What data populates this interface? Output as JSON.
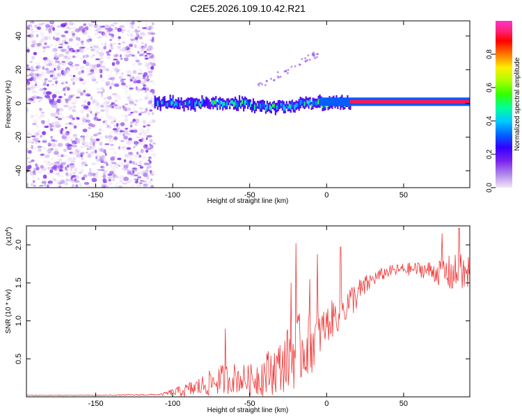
{
  "title": "C2E5.2026.109.10.42.R21",
  "colors": {
    "snr_line": "#ee3333",
    "axis": "#000000",
    "background": "#ffffff"
  },
  "chart_data": [
    {
      "type": "heatmap",
      "name": "spectrogram",
      "xlabel": "Height of straight line (km)",
      "ylabel": "Frequency (Hz)",
      "xlim": [
        -195,
        93
      ],
      "ylim": [
        -50,
        49
      ],
      "xticks": [
        -150,
        -100,
        -50,
        0,
        50
      ],
      "yticks": [
        -40,
        -20,
        0,
        20,
        40
      ],
      "colorbar": {
        "label": "Normalized spectral amplitude",
        "range": [
          0,
          1
        ],
        "ticks": [
          0.0,
          0.2,
          0.4,
          0.6,
          0.8
        ],
        "tick_labels": [
          "0.0",
          "0.2",
          "0.4",
          "0.6",
          "0.8"
        ],
        "colormap": [
          "#f2e6f7",
          "#b088ec",
          "#7b22ee",
          "#3300ff",
          "#0066ff",
          "#00ccff",
          "#00ff99",
          "#33ff00",
          "#aaff00",
          "#ffee00",
          "#ff7700",
          "#ff0000",
          "#ff2277",
          "#ff33cc"
        ]
      },
      "description_regions": [
        {
          "x_range": [
            -195,
            -112
          ],
          "freq_range": [
            -50,
            49
          ],
          "amplitude": [
            0.0,
            0.15
          ],
          "pattern": "broadband noise"
        },
        {
          "x_range": [
            -112,
            15
          ],
          "center_freq": 0,
          "half_width": [
            2,
            4
          ],
          "amplitude": [
            0.15,
            0.55
          ],
          "pattern": "fluctuating narrow band"
        },
        {
          "x_range": [
            -45,
            -5
          ],
          "freq": [
            10,
            30
          ],
          "amplitude": [
            0.1,
            0.2
          ],
          "pattern": "faint rising streak"
        },
        {
          "x_range": [
            15,
            93
          ],
          "center_freq": 1,
          "half_width": 1,
          "amplitude": [
            0.9,
            1.0
          ],
          "pattern": "strong steady line"
        }
      ]
    },
    {
      "type": "line",
      "name": "snr",
      "xlabel": "Height of straight line (km)",
      "ylabel": "SNR (10 * v/v)",
      "multiplier": "(x10",
      "multiplier_exp": "4",
      "xlim": [
        -195,
        93
      ],
      "ylim": [
        0,
        2.25
      ],
      "xticks": [
        -150,
        -100,
        -50,
        0,
        50
      ],
      "yticks": [
        0.5,
        1.0,
        1.5,
        2.0
      ],
      "ytick_labels": [
        "0.5",
        "1.0",
        "1.5",
        "2.0"
      ],
      "x": [
        -195,
        -150,
        -108,
        -100,
        -90,
        -80,
        -70,
        -60,
        -50,
        -40,
        -30,
        -20,
        -10,
        0,
        10,
        20,
        30,
        40,
        50,
        60,
        70,
        80,
        93
      ],
      "y_base": [
        0.02,
        0.02,
        0.03,
        0.06,
        0.09,
        0.15,
        0.22,
        0.25,
        0.22,
        0.3,
        0.4,
        0.6,
        0.7,
        0.95,
        1.15,
        1.35,
        1.55,
        1.65,
        1.68,
        1.68,
        1.65,
        1.62,
        1.6
      ],
      "y_noise": [
        0.005,
        0.005,
        0.01,
        0.05,
        0.1,
        0.15,
        0.2,
        0.2,
        0.2,
        0.3,
        0.35,
        0.5,
        0.4,
        0.25,
        0.25,
        0.2,
        0.1,
        0.08,
        0.08,
        0.1,
        0.15,
        0.25,
        0.3
      ],
      "peaks": [
        {
          "x": -66,
          "y": 0.9
        },
        {
          "x": -23,
          "y": 1.5
        },
        {
          "x": -20,
          "y": 2.02
        },
        {
          "x": -11,
          "y": 1.55
        },
        {
          "x": -6,
          "y": 1.88
        },
        {
          "x": 9,
          "y": 1.97
        },
        {
          "x": 75,
          "y": 2.15
        },
        {
          "x": 86,
          "y": 2.22
        }
      ]
    }
  ]
}
